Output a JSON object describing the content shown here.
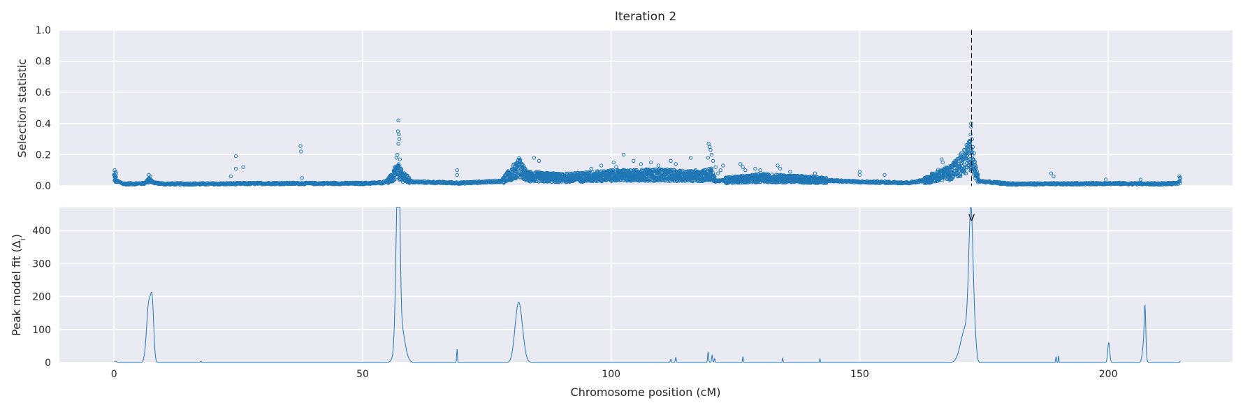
{
  "chart_data": [
    {
      "type": "scatter",
      "panel": "top",
      "title": "Iteration 2",
      "xlabel": "",
      "ylabel": "Selection statistic",
      "xlim": [
        -11,
        225
      ],
      "ylim": [
        0,
        1.0
      ],
      "yticks": [
        0.0,
        0.2,
        0.4,
        0.6,
        0.8,
        1.0
      ],
      "ytick_labels": [
        "0.0",
        "0.2",
        "0.4",
        "0.6",
        "0.8",
        "1.0"
      ],
      "xticks": [
        0,
        50,
        100,
        150,
        200
      ],
      "grid": true,
      "vline": {
        "x": 172.5,
        "style": "dashed"
      },
      "marker": "open-circle",
      "color": "#1f77b4",
      "baseline_profile": [
        [
          0,
          0.06
        ],
        [
          0.5,
          0.03
        ],
        [
          2,
          0.012
        ],
        [
          6,
          0.015
        ],
        [
          7,
          0.04
        ],
        [
          8,
          0.02
        ],
        [
          10,
          0.012
        ],
        [
          20,
          0.012
        ],
        [
          30,
          0.015
        ],
        [
          40,
          0.015
        ],
        [
          50,
          0.015
        ],
        [
          54,
          0.02
        ],
        [
          56,
          0.05
        ],
        [
          57,
          0.1
        ],
        [
          58,
          0.06
        ],
        [
          60,
          0.025
        ],
        [
          70,
          0.018
        ],
        [
          78,
          0.03
        ],
        [
          80,
          0.08
        ],
        [
          81.5,
          0.12
        ],
        [
          83,
          0.06
        ],
        [
          90,
          0.05
        ],
        [
          100,
          0.065
        ],
        [
          110,
          0.07
        ],
        [
          118,
          0.06
        ],
        [
          120,
          0.08
        ],
        [
          121,
          0.03
        ],
        [
          125,
          0.04
        ],
        [
          130,
          0.05
        ],
        [
          140,
          0.04
        ],
        [
          150,
          0.025
        ],
        [
          160,
          0.02
        ],
        [
          164,
          0.04
        ],
        [
          166,
          0.07
        ],
        [
          168,
          0.08
        ],
        [
          170,
          0.12
        ],
        [
          172,
          0.2
        ],
        [
          173,
          0.12
        ],
        [
          174,
          0.03
        ],
        [
          180,
          0.012
        ],
        [
          190,
          0.012
        ],
        [
          200,
          0.015
        ],
        [
          210,
          0.012
        ],
        [
          214,
          0.015
        ],
        [
          214.5,
          0.04
        ]
      ],
      "highlight_points": [
        [
          0.1,
          0.1
        ],
        [
          0.3,
          0.09
        ],
        [
          0.4,
          0.08
        ],
        [
          7,
          0.07
        ],
        [
          7.3,
          0.06
        ],
        [
          24.5,
          0.19
        ],
        [
          24.5,
          0.11
        ],
        [
          26,
          0.12
        ],
        [
          23.5,
          0.06
        ],
        [
          37.5,
          0.255
        ],
        [
          37.6,
          0.22
        ],
        [
          37.8,
          0.05
        ],
        [
          57.2,
          0.42
        ],
        [
          57.1,
          0.35
        ],
        [
          57.3,
          0.33
        ],
        [
          57.4,
          0.3
        ],
        [
          57.2,
          0.27
        ],
        [
          57.0,
          0.2
        ],
        [
          56.8,
          0.18
        ],
        [
          57.5,
          0.17
        ],
        [
          56.5,
          0.12
        ],
        [
          69,
          0.1
        ],
        [
          69,
          0.07
        ],
        [
          81.5,
          0.15
        ],
        [
          82,
          0.14
        ],
        [
          84.5,
          0.18
        ],
        [
          85.5,
          0.16
        ],
        [
          96,
          0.11
        ],
        [
          98,
          0.13
        ],
        [
          100.5,
          0.15
        ],
        [
          101,
          0.12
        ],
        [
          102.5,
          0.2
        ],
        [
          104.5,
          0.16
        ],
        [
          106,
          0.14
        ],
        [
          108,
          0.15
        ],
        [
          109.5,
          0.13
        ],
        [
          112,
          0.16
        ],
        [
          113,
          0.14
        ],
        [
          116,
          0.18
        ],
        [
          117,
          0.1
        ],
        [
          119.6,
          0.27
        ],
        [
          119.8,
          0.25
        ],
        [
          120,
          0.23
        ],
        [
          120.2,
          0.2
        ],
        [
          119.5,
          0.18
        ],
        [
          120.5,
          0.16
        ],
        [
          121,
          0.12
        ],
        [
          121.5,
          0.08
        ],
        [
          122.5,
          0.13
        ],
        [
          122,
          0.1
        ],
        [
          126,
          0.14
        ],
        [
          126.5,
          0.12
        ],
        [
          127,
          0.1
        ],
        [
          129,
          0.11
        ],
        [
          130,
          0.1
        ],
        [
          133.5,
          0.13
        ],
        [
          134,
          0.11
        ],
        [
          136,
          0.09
        ],
        [
          141,
          0.08
        ],
        [
          150,
          0.09
        ],
        [
          150,
          0.07
        ],
        [
          155,
          0.07
        ],
        [
          164.5,
          0.08
        ],
        [
          165.5,
          0.07
        ],
        [
          166.5,
          0.17
        ],
        [
          166.7,
          0.15
        ],
        [
          172.4,
          0.4
        ],
        [
          172.4,
          0.38
        ],
        [
          172.3,
          0.33
        ],
        [
          172.6,
          0.3
        ],
        [
          172.2,
          0.28
        ],
        [
          172.0,
          0.26
        ],
        [
          172.8,
          0.25
        ],
        [
          171.8,
          0.23
        ],
        [
          173,
          0.21
        ],
        [
          171.5,
          0.19
        ],
        [
          188.5,
          0.08
        ],
        [
          189,
          0.06
        ],
        [
          199.5,
          0.04
        ],
        [
          206.5,
          0.04
        ],
        [
          214.3,
          0.06
        ]
      ]
    },
    {
      "type": "line",
      "panel": "bottom",
      "xlabel": "Chromosome position (cM)",
      "ylabel_main": "Peak model fit (Δ",
      "ylabel_sub": "i",
      "ylabel_close": ")",
      "xlim": [
        -11,
        225
      ],
      "ylim": [
        0,
        470
      ],
      "yticks": [
        0,
        100,
        200,
        300,
        400
      ],
      "ytick_labels": [
        "0",
        "100",
        "200",
        "300",
        "400"
      ],
      "xticks": [
        0,
        50,
        100,
        150,
        200
      ],
      "xtick_labels": [
        "0",
        "50",
        "100",
        "150",
        "200"
      ],
      "grid": true,
      "marker_annotation": {
        "text": "v",
        "x": 172.5,
        "y": 440
      },
      "color": "#1f77b4",
      "peaks": [
        [
          0.2,
          4,
          0.3
        ],
        [
          7,
          180,
          0.45
        ],
        [
          7.7,
          145,
          0.3
        ],
        [
          17.5,
          4,
          0.1
        ],
        [
          57.0,
          370,
          0.35
        ],
        [
          57.3,
          300,
          0.25
        ],
        [
          57.6,
          120,
          0.8
        ],
        [
          69,
          40,
          0.08
        ],
        [
          81.6,
          140,
          0.7
        ],
        [
          81.0,
          60,
          0.6
        ],
        [
          112,
          10,
          0.1
        ],
        [
          113,
          15,
          0.1
        ],
        [
          119.5,
          32,
          0.1
        ],
        [
          120.3,
          22,
          0.1
        ],
        [
          120.8,
          12,
          0.1
        ],
        [
          126.5,
          18,
          0.08
        ],
        [
          134.5,
          13,
          0.08
        ],
        [
          142,
          12,
          0.06
        ],
        [
          172.4,
          433,
          0.45
        ],
        [
          171.2,
          100,
          0.9
        ],
        [
          173.3,
          30,
          0.25
        ],
        [
          189.5,
          18,
          0.08
        ],
        [
          190,
          20,
          0.06
        ],
        [
          200.1,
          60,
          0.2
        ],
        [
          207.4,
          125,
          0.15
        ],
        [
          207.2,
          60,
          0.3
        ],
        [
          214.5,
          4,
          0.1
        ]
      ]
    }
  ]
}
